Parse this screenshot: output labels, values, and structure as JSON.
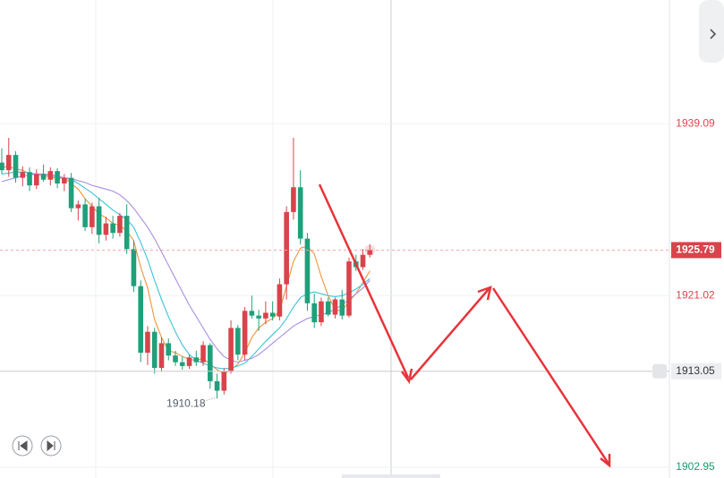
{
  "chart_data": {
    "type": "candlestick",
    "ylim": [
      1901.82,
      1952.1
    ],
    "yticks": [
      1939.09,
      1921.02,
      1902.95
    ],
    "ytick_colors": [
      "#e0434b",
      "#e0434b",
      "#1a9a6c"
    ],
    "up_color": "#d9434b",
    "down_color": "#1fa07a",
    "current_price": 1925.79,
    "crosshair_price": 1913.05,
    "low_label": 1910.18,
    "low_index": 31,
    "open": [
      1935.0,
      1934.2,
      1935.8,
      1933.4,
      1934.0,
      1932.6,
      1933.8,
      1933.2,
      1934.1,
      1932.8,
      1933.4,
      1930.2,
      1930.6,
      1928.2,
      1930.4,
      1927.4,
      1928.6,
      1927.6,
      1929.4,
      1925.9,
      1922.0,
      1915.0,
      1917.2,
      1913.4,
      1916.0,
      1914.7,
      1914.0,
      1913.6,
      1914.5,
      1914.0,
      1915.8,
      1912.0,
      1911.0,
      1913.0,
      1917.6,
      1914.8,
      1919.4,
      1918.9,
      1918.6,
      1919.2,
      1918.8,
      1922.2,
      1929.8,
      1932.4,
      1927.0,
      1920.2,
      1918.2,
      1920.4,
      1919.0,
      1920.6,
      1918.9,
      1924.6,
      1924.0,
      1925.3
    ],
    "high": [
      1936.5,
      1937.6,
      1936.2,
      1934.6,
      1934.5,
      1934.3,
      1934.8,
      1934.5,
      1934.4,
      1933.8,
      1933.9,
      1931.0,
      1931.2,
      1930.8,
      1931.3,
      1929.3,
      1929.4,
      1929.7,
      1930.6,
      1926.8,
      1922.6,
      1917.8,
      1917.6,
      1916.6,
      1916.5,
      1915.2,
      1914.6,
      1914.8,
      1915.2,
      1916.2,
      1916.0,
      1912.8,
      1913.4,
      1918.4,
      1917.9,
      1919.8,
      1921.0,
      1919.5,
      1920.4,
      1920.4,
      1922.8,
      1930.4,
      1937.6,
      1934.2,
      1927.6,
      1921.2,
      1920.8,
      1920.8,
      1920.8,
      1921.6,
      1925.0,
      1925.3,
      1925.9,
      1926.4
    ],
    "low": [
      1933.8,
      1933.5,
      1932.9,
      1932.5,
      1932.0,
      1932.2,
      1933.0,
      1932.6,
      1932.3,
      1932.0,
      1929.8,
      1928.9,
      1927.8,
      1927.5,
      1926.5,
      1926.8,
      1927.0,
      1927.2,
      1925.4,
      1921.4,
      1914.0,
      1913.7,
      1912.8,
      1913.0,
      1914.2,
      1913.6,
      1913.2,
      1913.3,
      1913.6,
      1913.6,
      1911.2,
      1910.18,
      1910.6,
      1912.8,
      1914.2,
      1914.2,
      1918.6,
      1917.3,
      1918.0,
      1918.4,
      1918.4,
      1920.6,
      1929.0,
      1926.4,
      1919.4,
      1917.6,
      1917.8,
      1918.8,
      1918.6,
      1918.5,
      1918.7,
      1923.6,
      1923.7,
      1925.0
    ],
    "close": [
      1934.2,
      1935.8,
      1933.4,
      1934.0,
      1932.6,
      1933.8,
      1933.2,
      1934.1,
      1932.8,
      1933.4,
      1930.2,
      1930.6,
      1928.2,
      1930.4,
      1927.4,
      1928.6,
      1927.6,
      1929.4,
      1925.9,
      1922.0,
      1915.0,
      1917.2,
      1913.4,
      1916.0,
      1914.7,
      1914.0,
      1913.6,
      1914.5,
      1914.0,
      1915.8,
      1912.0,
      1911.0,
      1913.0,
      1917.6,
      1914.8,
      1919.4,
      1918.9,
      1918.6,
      1919.2,
      1918.8,
      1922.2,
      1929.8,
      1932.4,
      1927.0,
      1920.2,
      1918.2,
      1920.4,
      1919.0,
      1920.6,
      1918.9,
      1924.6,
      1924.0,
      1925.3,
      1925.79
    ],
    "moving_averages": [
      {
        "color": "#f0943a",
        "values": [
          1934.5,
          1934.6,
          1934.3,
          1934.2,
          1933.8,
          1933.7,
          1933.6,
          1933.5,
          1933.3,
          1933.4,
          1932.8,
          1932.2,
          1931.2,
          1930.4,
          1929.6,
          1929.2,
          1928.6,
          1928.4,
          1927.8,
          1926.8,
          1924.0,
          1921.8,
          1918.5,
          1916.6,
          1915.2,
          1915.0,
          1914.6,
          1914.3,
          1914.2,
          1914.4,
          1913.8,
          1913.2,
          1912.8,
          1913.2,
          1913.8,
          1915.0,
          1916.6,
          1917.6,
          1918.2,
          1918.6,
          1919.4,
          1922.0,
          1924.6,
          1926.0,
          1926.2,
          1925.4,
          1923.0,
          1921.0,
          1919.5,
          1919.4,
          1920.4,
          1921.2,
          1922.4,
          1923.6
        ]
      },
      {
        "color": "#3cc3d8",
        "values": [
          1933.8,
          1933.9,
          1934.0,
          1934.0,
          1933.9,
          1933.8,
          1933.8,
          1933.6,
          1933.5,
          1933.4,
          1933.2,
          1932.8,
          1932.3,
          1931.8,
          1931.2,
          1930.6,
          1930.0,
          1929.5,
          1929.0,
          1928.2,
          1926.6,
          1924.8,
          1922.6,
          1920.6,
          1918.8,
          1917.2,
          1915.8,
          1914.8,
          1914.2,
          1913.9,
          1913.6,
          1913.4,
          1913.3,
          1913.4,
          1913.6,
          1913.9,
          1914.6,
          1915.4,
          1916.2,
          1916.9,
          1917.6,
          1918.6,
          1919.8,
          1920.8,
          1921.2,
          1921.4,
          1921.2,
          1921.0,
          1920.9,
          1921.0,
          1921.3,
          1921.7,
          1922.2,
          1922.8
        ]
      },
      {
        "color": "#a98fe0",
        "values": [
          1933.0,
          1933.2,
          1933.4,
          1933.6,
          1933.7,
          1933.8,
          1933.8,
          1933.7,
          1933.6,
          1933.4,
          1933.3,
          1933.1,
          1932.9,
          1932.6,
          1932.4,
          1932.2,
          1932.0,
          1931.6,
          1931.0,
          1930.2,
          1929.2,
          1928.2,
          1927.0,
          1925.6,
          1924.2,
          1922.8,
          1921.4,
          1920.0,
          1918.8,
          1917.6,
          1916.4,
          1915.4,
          1914.6,
          1914.2,
          1914.0,
          1914.2,
          1914.4,
          1914.8,
          1915.4,
          1916.0,
          1916.6,
          1917.2,
          1917.8,
          1918.2,
          1918.6,
          1918.8,
          1919.0,
          1919.2,
          1919.6,
          1920.0,
          1920.6,
          1921.2,
          1921.8,
          1922.6
        ]
      }
    ]
  }
}
